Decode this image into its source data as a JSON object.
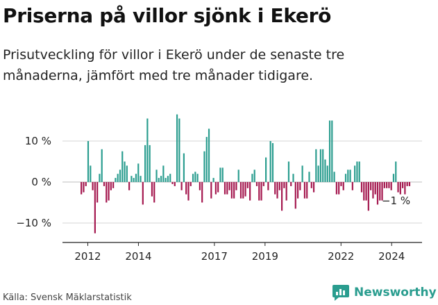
{
  "header": {
    "title": "Priserna på villor sjönk i Ekerö",
    "subtitle": "Prisutveckling för villor i Ekerö under de senaste tre månaderna, jämfört med tre månader tidigare."
  },
  "footer": {
    "source": "Källa: Svensk Mäklarstatistik",
    "brand": "Newsworthy"
  },
  "colors": {
    "positive": "#2a9d8f",
    "negative": "#a4174e",
    "grid": "#d6d6d6",
    "axis": "#222222"
  },
  "chart_data": {
    "type": "bar",
    "title": "Priserna på villor sjönk i Ekerö",
    "xlabel": "",
    "ylabel": "",
    "ylim": [
      -13,
      18
    ],
    "x_start": 2011.7,
    "x_end": 2024.75,
    "xlim": [
      2011.0,
      2025.2
    ],
    "x_ticks": [
      {
        "value": 2012,
        "label": "2012"
      },
      {
        "value": 2014,
        "label": "2014"
      },
      {
        "value": 2017,
        "label": "2017"
      },
      {
        "value": 2019,
        "label": "2019"
      },
      {
        "value": 2022,
        "label": "2022"
      },
      {
        "value": 2024,
        "label": "2024"
      }
    ],
    "y_ticks": [
      {
        "value": 10,
        "label": "10 %"
      },
      {
        "value": 0,
        "label": "0 %"
      },
      {
        "value": -10,
        "label": "−10 %"
      }
    ],
    "annotation": {
      "label": "−1 %"
    },
    "values": [
      -3,
      -2.5,
      -1,
      10,
      4,
      -2,
      -12.5,
      -5,
      2,
      8,
      -1,
      -5,
      -4.5,
      -2,
      -1.5,
      1,
      2,
      3,
      7.5,
      5,
      4,
      -2,
      1.5,
      1,
      2,
      4.5,
      1.5,
      -5.5,
      9,
      15.5,
      9,
      -3.5,
      -5,
      3,
      1,
      1.5,
      4,
      1,
      1.5,
      2,
      -0.5,
      -1,
      16.5,
      15.5,
      -2,
      7,
      -3,
      -4.5,
      -1,
      2,
      2.5,
      2,
      -2,
      -5,
      7.5,
      11,
      13,
      -4,
      1,
      -3,
      -2.5,
      3.5,
      3.5,
      -3,
      -3,
      -2,
      -4,
      -4,
      -2,
      3,
      -4,
      -4,
      -3.5,
      -1.5,
      -4.5,
      2,
      3,
      -1,
      -4.5,
      -4.5,
      -1,
      6,
      -2,
      10,
      9.5,
      -3,
      -4,
      -2,
      -7,
      -1.5,
      -4.5,
      5,
      -1,
      2,
      -6.5,
      -4,
      -2,
      4,
      -4,
      -4,
      2.5,
      -1.5,
      -2.5,
      8,
      4,
      8,
      8,
      5.5,
      4,
      15,
      15,
      2.5,
      -3,
      -3,
      -1,
      -2,
      2,
      3,
      3,
      -2,
      4,
      5,
      5,
      -2.5,
      -4.5,
      -4.5,
      -7,
      -2,
      -4,
      -3,
      -5.5,
      -4.5,
      -4.5,
      -1.5,
      -1.5,
      -1.5,
      -2,
      2,
      5,
      -2.5,
      -3,
      -1.5,
      -3,
      -1,
      -1
    ]
  }
}
